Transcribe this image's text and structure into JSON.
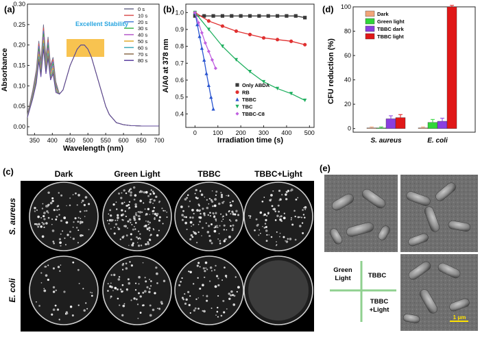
{
  "panel_labels": {
    "a": "(a)",
    "b": "(b)",
    "c": "(c)",
    "d": "(d)",
    "e": "(e)"
  },
  "chart_data": [
    {
      "id": "a",
      "type": "line",
      "title": "",
      "xlabel": "Wavelength (nm)",
      "ylabel": "Absorbance",
      "xlim": [
        330,
        700
      ],
      "ylim": [
        -0.02,
        0.3
      ],
      "x_ticks": [
        350,
        400,
        450,
        500,
        550,
        600,
        650,
        700
      ],
      "y_ticks": [
        0.0,
        0.05,
        0.1,
        0.15,
        0.2,
        0.25,
        0.3
      ],
      "annotation": "Excellent Stability",
      "series": [
        {
          "name": "0 s",
          "color": "#6a6a8a"
        },
        {
          "name": "10 s",
          "color": "#d94f4f"
        },
        {
          "name": "20 s",
          "color": "#4a7fd6"
        },
        {
          "name": "30 s",
          "color": "#3cb54a"
        },
        {
          "name": "40 s",
          "color": "#b455c9"
        },
        {
          "name": "50 s",
          "color": "#e0a92a"
        },
        {
          "name": "60 s",
          "color": "#3aa8b8"
        },
        {
          "name": "70 s",
          "color": "#8a6a4a"
        },
        {
          "name": "80 s",
          "color": "#5a3fa0"
        }
      ],
      "x": [
        330,
        345,
        355,
        362,
        368,
        375,
        382,
        388,
        395,
        402,
        410,
        420,
        430,
        440,
        450,
        460,
        470,
        480,
        490,
        500,
        510,
        520,
        530,
        540,
        550,
        560,
        570,
        580,
        600,
        620,
        650,
        680,
        700
      ],
      "base_values": [
        0.03,
        0.09,
        0.14,
        0.21,
        0.16,
        0.25,
        0.17,
        0.22,
        0.15,
        0.17,
        0.11,
        0.08,
        0.09,
        0.12,
        0.15,
        0.17,
        0.19,
        0.2,
        0.2,
        0.19,
        0.17,
        0.14,
        0.11,
        0.08,
        0.05,
        0.03,
        0.02,
        0.01,
        0.005,
        0.003,
        0.002,
        0.002,
        0.002
      ],
      "short_wave_drop_per_step": 0.0075
    },
    {
      "id": "b",
      "type": "scatter",
      "title": "",
      "xlabel": "Irradiation time (s)",
      "ylabel": "A/A0 at 378 nm",
      "xlim": [
        -40,
        520
      ],
      "ylim": [
        0.32,
        1.05
      ],
      "x_ticks": [
        0,
        100,
        200,
        300,
        400,
        500
      ],
      "y_ticks": [
        0.4,
        0.5,
        0.6,
        0.7,
        0.8,
        0.9,
        1.0
      ],
      "series": [
        {
          "name": "Only ABDA",
          "color": "#3a3a3a",
          "marker": "square",
          "x": [
            0,
            40,
            80,
            120,
            160,
            200,
            240,
            280,
            320,
            360,
            400,
            440,
            480
          ],
          "values": [
            0.98,
            0.98,
            0.98,
            0.98,
            0.98,
            0.98,
            0.98,
            0.98,
            0.98,
            0.98,
            0.98,
            0.98,
            0.97
          ]
        },
        {
          "name": "RB",
          "color": "#e03030",
          "marker": "circle",
          "x": [
            0,
            60,
            120,
            180,
            240,
            300,
            360,
            420,
            480
          ],
          "values": [
            1.0,
            0.95,
            0.92,
            0.89,
            0.87,
            0.85,
            0.84,
            0.83,
            0.81
          ]
        },
        {
          "name": "TBBC",
          "color": "#2a55d0",
          "marker": "triangle-up",
          "x": [
            0,
            10,
            20,
            30,
            40,
            50,
            60,
            70,
            80
          ],
          "values": [
            1.0,
            0.93,
            0.86,
            0.79,
            0.72,
            0.64,
            0.57,
            0.5,
            0.43
          ]
        },
        {
          "name": "TBC",
          "color": "#20b060",
          "marker": "triangle-down",
          "x": [
            0,
            60,
            120,
            180,
            240,
            300,
            360,
            420,
            480
          ],
          "values": [
            1.0,
            0.9,
            0.8,
            0.72,
            0.65,
            0.59,
            0.55,
            0.52,
            0.48
          ]
        },
        {
          "name": "TBBC-C8",
          "color": "#c060e0",
          "marker": "diamond",
          "x": [
            0,
            15,
            30,
            45,
            60,
            75,
            90
          ],
          "values": [
            1.0,
            0.94,
            0.88,
            0.82,
            0.77,
            0.72,
            0.67
          ]
        }
      ]
    },
    {
      "id": "d",
      "type": "bar",
      "title": "",
      "xlabel": "",
      "ylabel": "CFU reduction (%)",
      "ylim": [
        -3,
        100
      ],
      "y_ticks": [
        0,
        20,
        40,
        60,
        80,
        100
      ],
      "categories": [
        "S. aureus",
        "E. coli"
      ],
      "series": [
        {
          "name": "Dark",
          "color": "#f2a579",
          "values": [
            0.5,
            0.5
          ]
        },
        {
          "name": "Green light",
          "color": "#31d63a",
          "values": [
            0.5,
            5
          ]
        },
        {
          "name": "TBBC dark",
          "color": "#8a3fe0",
          "values": [
            8,
            6
          ]
        },
        {
          "name": "TBBC light",
          "color": "#e01818",
          "values": [
            9,
            100
          ]
        }
      ]
    }
  ],
  "panel_c": {
    "columns": [
      "Dark",
      "Green Light",
      "TBBC",
      "TBBC+Light"
    ],
    "rows": [
      "S. aureus",
      "E. coli"
    ],
    "colony_density": [
      [
        0.6,
        1.0,
        0.85,
        0.55
      ],
      [
        0.25,
        0.45,
        0.45,
        0.0
      ]
    ]
  },
  "panel_e": {
    "scale_bar": "1 μm",
    "quadrant_labels": [
      "Green Light",
      "TBBC",
      "TBBC +Light"
    ]
  }
}
